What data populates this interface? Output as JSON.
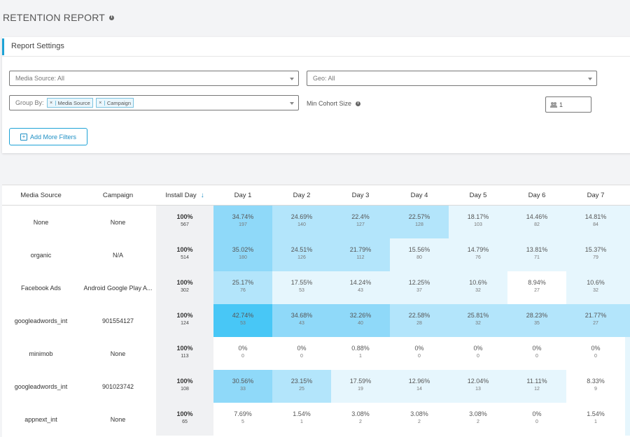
{
  "page": {
    "title": "RETENTION REPORT"
  },
  "settings": {
    "title": "Report Settings",
    "media_source": "Media Source: All",
    "geo": "Geo: All",
    "group_by_label": "Group By:",
    "group_by_tags": [
      "Media Source",
      "Campaign"
    ],
    "min_cohort_label": "Min Cohort Size",
    "min_cohort_value": "1",
    "add_filters": "Add More Filters"
  },
  "table": {
    "headers": {
      "media_source": "Media Source",
      "campaign": "Campaign",
      "install_day": "Install Day",
      "days": [
        "Day 1",
        "Day 2",
        "Day 3",
        "Day 4",
        "Day 5",
        "Day 6",
        "Day 7"
      ]
    },
    "rows": [
      {
        "media_source": "None",
        "campaign": "None",
        "install": {
          "pct": "100%",
          "count": "567"
        },
        "days": [
          {
            "pct": "34.74%",
            "count": "197",
            "level": 3
          },
          {
            "pct": "24.69%",
            "count": "140",
            "level": 2
          },
          {
            "pct": "22.4%",
            "count": "127",
            "level": 2
          },
          {
            "pct": "22.57%",
            "count": "128",
            "level": 2
          },
          {
            "pct": "18.17%",
            "count": "103",
            "level": 1
          },
          {
            "pct": "14.46%",
            "count": "82",
            "level": 1
          },
          {
            "pct": "14.81%",
            "count": "84",
            "level": 1
          }
        ]
      },
      {
        "media_source": "organic",
        "campaign": "N/A",
        "install": {
          "pct": "100%",
          "count": "514"
        },
        "days": [
          {
            "pct": "35.02%",
            "count": "180",
            "level": 3
          },
          {
            "pct": "24.51%",
            "count": "126",
            "level": 2
          },
          {
            "pct": "21.79%",
            "count": "112",
            "level": 2
          },
          {
            "pct": "15.56%",
            "count": "80",
            "level": 1
          },
          {
            "pct": "14.79%",
            "count": "76",
            "level": 1
          },
          {
            "pct": "13.81%",
            "count": "71",
            "level": 1
          },
          {
            "pct": "15.37%",
            "count": "79",
            "level": 1
          }
        ]
      },
      {
        "media_source": "Facebook Ads",
        "campaign": "Android Google Play A...",
        "install": {
          "pct": "100%",
          "count": "302"
        },
        "days": [
          {
            "pct": "25.17%",
            "count": "76",
            "level": 2
          },
          {
            "pct": "17.55%",
            "count": "53",
            "level": 1
          },
          {
            "pct": "14.24%",
            "count": "43",
            "level": 1
          },
          {
            "pct": "12.25%",
            "count": "37",
            "level": 1
          },
          {
            "pct": "10.6%",
            "count": "32",
            "level": 1
          },
          {
            "pct": "8.94%",
            "count": "27",
            "level": 0
          },
          {
            "pct": "10.6%",
            "count": "32",
            "level": 1
          }
        ]
      },
      {
        "media_source": "googleadwords_int",
        "campaign": "901554127",
        "install": {
          "pct": "100%",
          "count": "124"
        },
        "days": [
          {
            "pct": "42.74%",
            "count": "53",
            "level": 4
          },
          {
            "pct": "34.68%",
            "count": "43",
            "level": 3
          },
          {
            "pct": "32.26%",
            "count": "40",
            "level": 3
          },
          {
            "pct": "22.58%",
            "count": "28",
            "level": 2
          },
          {
            "pct": "25.81%",
            "count": "32",
            "level": 2
          },
          {
            "pct": "28.23%",
            "count": "35",
            "level": 2
          },
          {
            "pct": "21.77%",
            "count": "27",
            "level": 2
          }
        ]
      },
      {
        "media_source": "minimob",
        "campaign": "None",
        "install": {
          "pct": "100%",
          "count": "113"
        },
        "days": [
          {
            "pct": "0%",
            "count": "0",
            "level": 0
          },
          {
            "pct": "0%",
            "count": "0",
            "level": 0
          },
          {
            "pct": "0.88%",
            "count": "1",
            "level": 0
          },
          {
            "pct": "0%",
            "count": "0",
            "level": 0
          },
          {
            "pct": "0%",
            "count": "0",
            "level": 0
          },
          {
            "pct": "0%",
            "count": "0",
            "level": 0
          },
          {
            "pct": "0%",
            "count": "0",
            "level": 0
          }
        ]
      },
      {
        "media_source": "googleadwords_int",
        "campaign": "901023742",
        "install": {
          "pct": "100%",
          "count": "108"
        },
        "days": [
          {
            "pct": "30.56%",
            "count": "33",
            "level": 3
          },
          {
            "pct": "23.15%",
            "count": "25",
            "level": 2
          },
          {
            "pct": "17.59%",
            "count": "19",
            "level": 1
          },
          {
            "pct": "12.96%",
            "count": "14",
            "level": 1
          },
          {
            "pct": "12.04%",
            "count": "13",
            "level": 1
          },
          {
            "pct": "11.11%",
            "count": "12",
            "level": 1
          },
          {
            "pct": "8.33%",
            "count": "9",
            "level": 0
          }
        ]
      },
      {
        "media_source": "appnext_int",
        "campaign": "None",
        "install": {
          "pct": "100%",
          "count": "65"
        },
        "days": [
          {
            "pct": "7.69%",
            "count": "5",
            "level": 0
          },
          {
            "pct": "1.54%",
            "count": "1",
            "level": 0
          },
          {
            "pct": "3.08%",
            "count": "2",
            "level": 0
          },
          {
            "pct": "3.08%",
            "count": "2",
            "level": 0
          },
          {
            "pct": "3.08%",
            "count": "2",
            "level": 0
          },
          {
            "pct": "0%",
            "count": "0",
            "level": 0
          },
          {
            "pct": "1.54%",
            "count": "1",
            "level": 0
          }
        ]
      }
    ]
  }
}
